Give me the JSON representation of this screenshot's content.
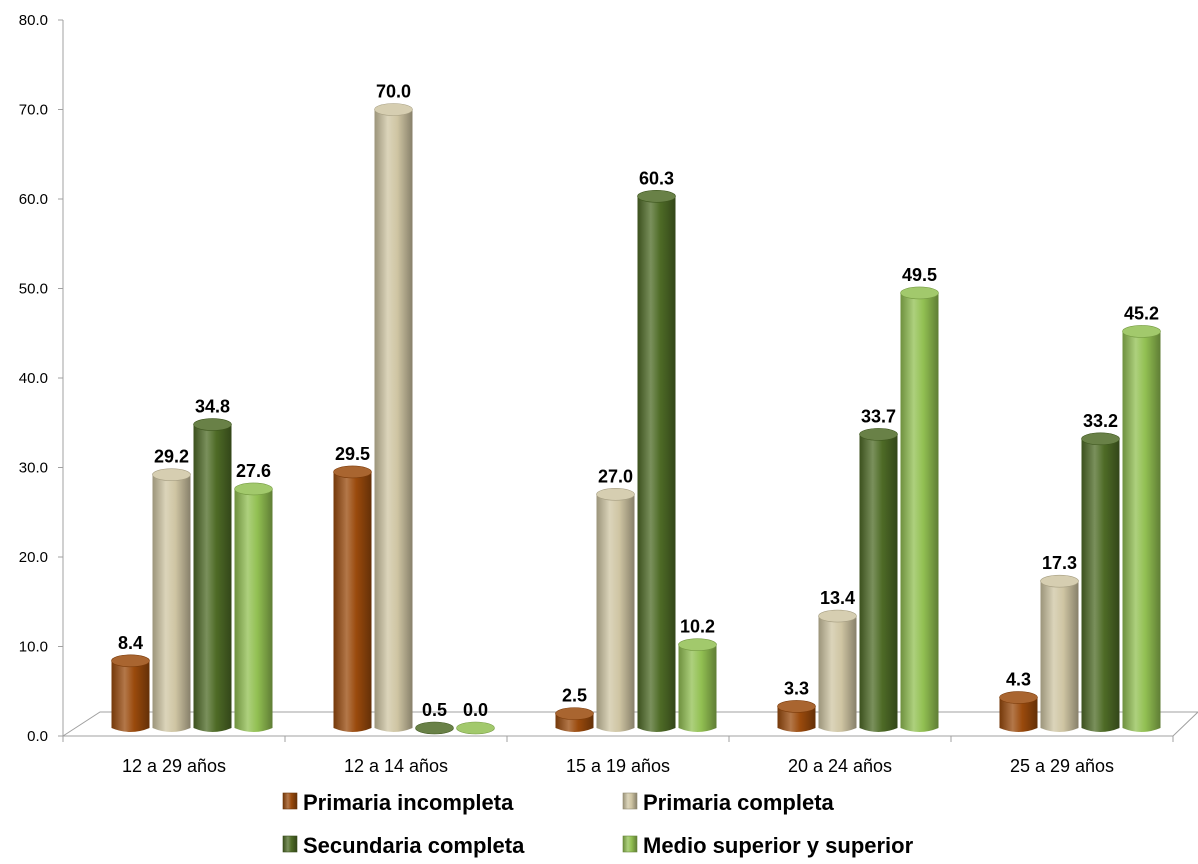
{
  "chart_data": {
    "type": "bar",
    "title": "",
    "xlabel": "",
    "ylabel": "",
    "ylim": [
      0,
      80
    ],
    "ytick_labels": [
      "0.0",
      "10.0",
      "20.0",
      "30.0",
      "40.0",
      "50.0",
      "60.0",
      "70.0",
      "80.0"
    ],
    "categories": [
      "12 a 29 años",
      "12 a 14 años",
      "15 a 19 años",
      "20 a 24 años",
      "25 a 29 años"
    ],
    "series": [
      {
        "name": "Primaria incompleta",
        "color": "#9a4a0c",
        "values": [
          8.4,
          29.5,
          2.5,
          3.3,
          4.3
        ],
        "labels": [
          "8.4",
          "29.5",
          "2.5",
          "3.3",
          "4.3"
        ]
      },
      {
        "name": "Primaria completa",
        "color": "#cfc5a3",
        "values": [
          29.2,
          70.0,
          27.0,
          13.4,
          17.3
        ],
        "labels": [
          "29.2",
          "70.0",
          "27.0",
          "13.4",
          "17.3"
        ]
      },
      {
        "name": "Secundaria completa",
        "color": "#4e6b26",
        "values": [
          34.8,
          0.5,
          60.3,
          33.7,
          33.2
        ],
        "labels": [
          "34.8",
          "0.5",
          "60.3",
          "33.7",
          "33.2"
        ]
      },
      {
        "name": "Medio superior y superior",
        "color": "#92c052",
        "values": [
          27.6,
          0.0,
          10.2,
          49.5,
          45.2
        ],
        "labels": [
          "27.6",
          "0.0",
          "10.2",
          "49.5",
          "45.2"
        ]
      }
    ],
    "grid": false,
    "legend_position": "bottom"
  }
}
